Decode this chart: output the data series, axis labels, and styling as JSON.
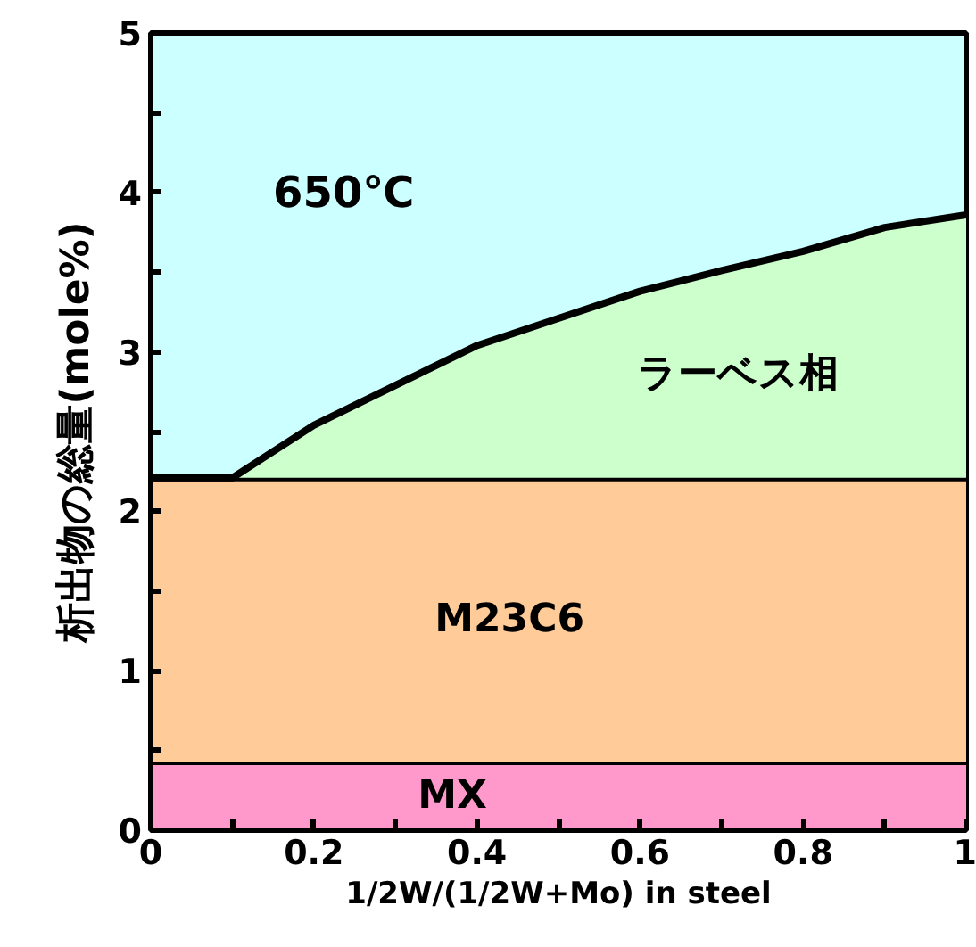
{
  "chart_data": {
    "type": "area",
    "stacked": true,
    "xlabel": "1/2W/(1/2W+Mo) in steel",
    "ylabel": "析出物の総量(mole%)",
    "annotations": [
      "650℃"
    ],
    "x": [
      0,
      0.1,
      0.2,
      0.3,
      0.4,
      0.5,
      0.6,
      0.7,
      0.8,
      0.9,
      1
    ],
    "series": [
      {
        "name": "MX",
        "color": "#ff99cc",
        "values": [
          0.43,
          0.43,
          0.43,
          0.43,
          0.43,
          0.43,
          0.43,
          0.43,
          0.43,
          0.43,
          0.43
        ]
      },
      {
        "name": "M23C6",
        "color": "#ffcc99",
        "values": [
          1.78,
          1.78,
          1.78,
          1.78,
          1.78,
          1.78,
          1.78,
          1.78,
          1.78,
          1.78,
          1.78
        ]
      },
      {
        "name": "ラーベス相",
        "color": "#ccffcc",
        "values": [
          0,
          0,
          0.33,
          0.58,
          0.83,
          1.0,
          1.17,
          1.3,
          1.42,
          1.57,
          1.65
        ]
      }
    ],
    "xlim": [
      0,
      1
    ],
    "ylim": [
      0,
      5
    ],
    "xticks": [
      0,
      {
        "value": 0.1,
        "label": null
      },
      0.2,
      {
        "value": 0.3,
        "label": null
      },
      0.4,
      {
        "value": 0.5,
        "label": null
      },
      0.6,
      {
        "value": 0.7,
        "label": null
      },
      0.8,
      {
        "value": 0.9,
        "label": null
      },
      1
    ],
    "yticks": [
      0,
      {
        "value": 0.5,
        "label": null
      },
      1,
      {
        "value": 1.5,
        "label": null
      },
      2,
      {
        "value": 2.5,
        "label": null
      },
      3,
      {
        "value": 3.5,
        "label": null
      },
      4,
      {
        "value": 4.5,
        "label": null
      },
      5
    ],
    "grid": false
  }
}
